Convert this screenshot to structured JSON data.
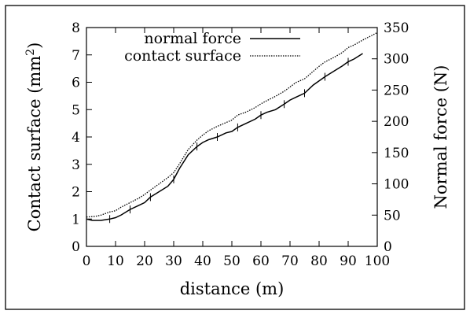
{
  "chart_data": {
    "type": "line",
    "title": "",
    "xlabel": "distance (m)",
    "ylabel_left": "Contact surface (mm",
    "ylabel_left_sup": "2",
    "ylabel_left_end": ")",
    "ylabel_right": "Normal force (N)",
    "xlim": [
      0,
      100
    ],
    "ylim_left": [
      0,
      8
    ],
    "ylim_right": [
      0,
      350
    ],
    "xticks": [
      "0",
      "10",
      "20",
      "30",
      "40",
      "50",
      "60",
      "70",
      "80",
      "90",
      "100"
    ],
    "yticks_left": [
      "0",
      "1",
      "2",
      "3",
      "4",
      "5",
      "6",
      "7",
      "8"
    ],
    "yticks_right": [
      "0",
      "50",
      "100",
      "150",
      "200",
      "250",
      "300",
      "350"
    ],
    "grid": false,
    "legend_position": "top-left",
    "series": [
      {
        "name": "normal force",
        "axis": "left",
        "style": "solid",
        "color": "#000000",
        "x": [
          0,
          2,
          5,
          8,
          10,
          12,
          15,
          18,
          20,
          22,
          25,
          28,
          30,
          32,
          35,
          38,
          40,
          42,
          45,
          48,
          50,
          52,
          55,
          58,
          60,
          62,
          65,
          68,
          70,
          72,
          75,
          78,
          80,
          82,
          85,
          88,
          90,
          92,
          95
        ],
        "y": [
          1.0,
          0.95,
          0.95,
          1.0,
          1.05,
          1.15,
          1.35,
          1.5,
          1.6,
          1.8,
          2.0,
          2.2,
          2.45,
          2.85,
          3.35,
          3.65,
          3.8,
          3.9,
          4.0,
          4.15,
          4.2,
          4.35,
          4.5,
          4.65,
          4.8,
          4.9,
          5.0,
          5.2,
          5.35,
          5.45,
          5.6,
          5.9,
          6.05,
          6.2,
          6.4,
          6.6,
          6.75,
          6.85,
          7.05
        ]
      },
      {
        "name": "contact surface",
        "axis": "right",
        "style": "dotted",
        "color": "#000000",
        "x": [
          0,
          3,
          5,
          8,
          10,
          12,
          15,
          18,
          20,
          22,
          25,
          28,
          30,
          32,
          35,
          38,
          40,
          42,
          45,
          48,
          50,
          52,
          55,
          58,
          60,
          62,
          65,
          68,
          70,
          72,
          75,
          78,
          80,
          82,
          85,
          88,
          90,
          92,
          95,
          98,
          100
        ],
        "y": [
          47,
          48,
          50,
          55,
          57,
          63,
          70,
          77,
          83,
          90,
          100,
          110,
          118,
          132,
          155,
          170,
          178,
          185,
          192,
          198,
          202,
          210,
          215,
          222,
          228,
          233,
          240,
          248,
          255,
          262,
          268,
          280,
          288,
          295,
          302,
          310,
          318,
          322,
          330,
          337,
          342
        ]
      }
    ]
  }
}
